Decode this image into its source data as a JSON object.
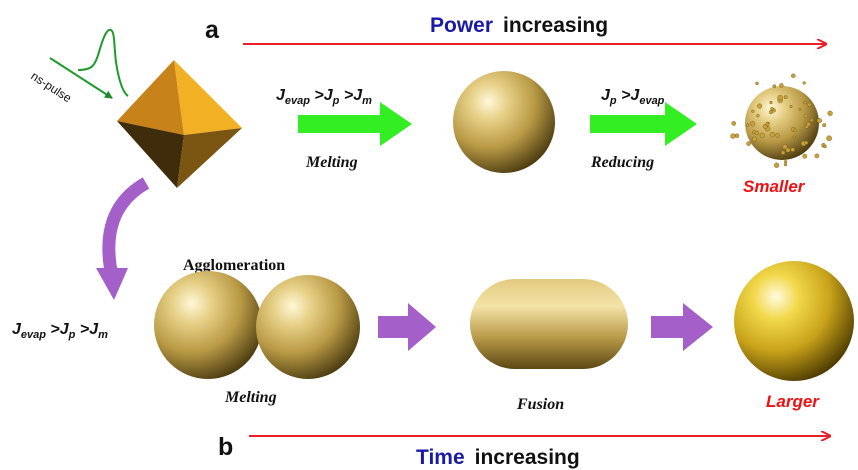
{
  "panel_a": {
    "letter": "a",
    "trend_word": "Power",
    "trend_rest": "increasing",
    "pulse_label": "ns-pulse",
    "cond1_main": "J",
    "cond1_sub1": "evap",
    "cond1_mid": " >J",
    "cond1_sub2": "p",
    "cond1_mid2": " >J",
    "cond1_sub3": "m",
    "step1": "Melting",
    "cond2_main": "J",
    "cond2_sub1": "p",
    "cond2_mid": " >J",
    "cond2_sub2": "evap",
    "step2": "Reducing",
    "result": "Smaller"
  },
  "panel_b": {
    "letter": "b",
    "trend_word": "Time",
    "trend_rest": "increasing",
    "agglomeration": "Agglomeration",
    "cond_main": "J",
    "cond_sub1": "evap",
    "cond_mid": " >J",
    "cond_sub2": "p",
    "cond_mid2": " >J",
    "cond_sub3": "m",
    "step1": "Melting",
    "step2": "Fusion",
    "result": "Larger"
  },
  "colors": {
    "red_arrow": "#e8202a",
    "green_arrow": "#33ee22",
    "purple_arrow": "#a45fc8",
    "power_blue": "#1a1aa8",
    "result_red": "#ee1111",
    "gold": "#c9a13a"
  }
}
